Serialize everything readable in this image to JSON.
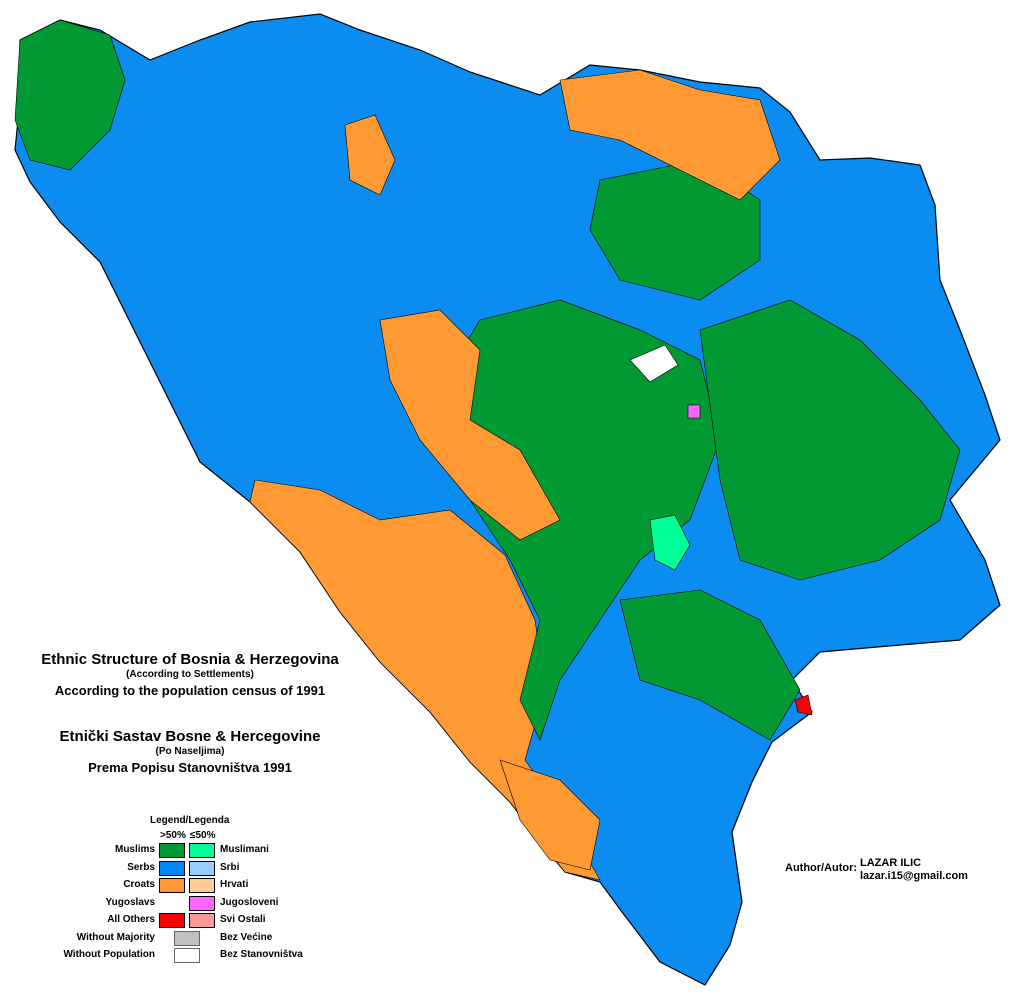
{
  "title_en": "Ethnic Structure of Bosnia & Herzegovina",
  "subtitle_en": "(According to Settlements)",
  "census_en": "According to the population census of 1991",
  "title_bs": "Etnički Sastav Bosne & Hercegovine",
  "subtitle_bs": "(Po Naseljima)",
  "census_bs": "Prema Popisu Stanovništva 1991",
  "legend": {
    "heading": "Legend/Legenda",
    "col_majority": ">50%",
    "col_plurality": "≤50%",
    "rows": [
      {
        "en": "Muslims",
        "bs": "Muslimani",
        "majority_color": "#009933",
        "plurality_color": "#00ff99"
      },
      {
        "en": "Serbs",
        "bs": "Srbi",
        "majority_color": "#0088ff",
        "plurality_color": "#99ccff"
      },
      {
        "en": "Croats",
        "bs": "Hrvati",
        "majority_color": "#ff9933",
        "plurality_color": "#ffcc99"
      },
      {
        "en": "Yugoslavs",
        "bs": "Jugosloveni",
        "majority_color": null,
        "plurality_color": "#ff66ff"
      },
      {
        "en": "All Others",
        "bs": "Svi Ostali",
        "majority_color": "#ff0000",
        "plurality_color": "#ff9999"
      },
      {
        "en": "Without Majority",
        "bs": "Bez Većine",
        "color": "#c0c0c0"
      },
      {
        "en": "Without Population",
        "bs": "Bez Stanovništva",
        "color": "#ffffff"
      }
    ]
  },
  "author": {
    "label": "Author/Autor:",
    "name": "LAZAR ILIC",
    "email": "lazar.i15@gmail.com"
  }
}
